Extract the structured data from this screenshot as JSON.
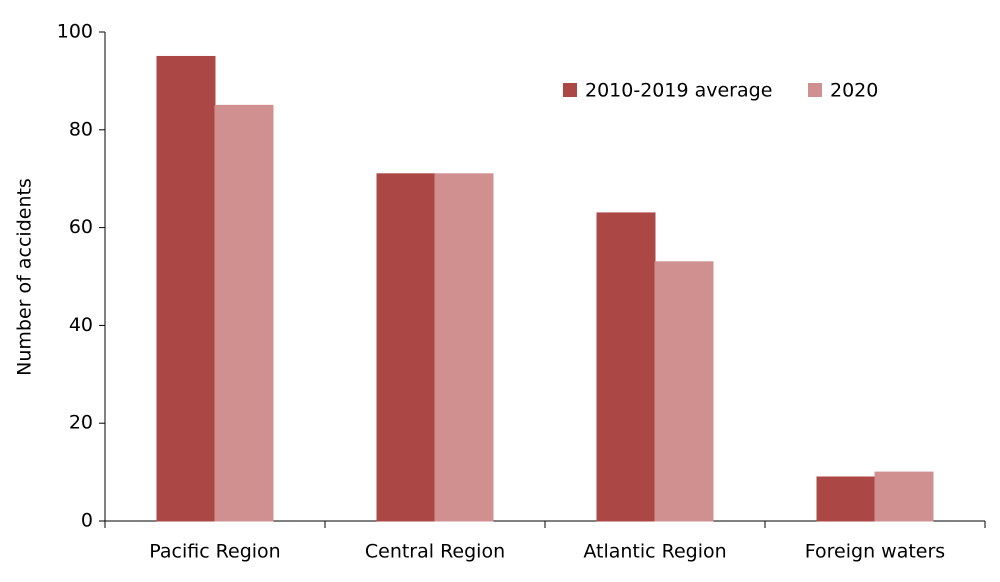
{
  "chart_data": {
    "type": "bar",
    "y_label": "Number of accidents",
    "categories": [
      "Pacific Region",
      "Central Region",
      "Atlantic Region",
      "Foreign waters"
    ],
    "series": [
      {
        "name": "2010-2019 average",
        "color": "#ab4745",
        "values": [
          95,
          71,
          63,
          9
        ]
      },
      {
        "name": "2020",
        "color": "#d09090",
        "values": [
          85,
          71,
          53,
          10
        ]
      }
    ],
    "ylim": [
      0,
      100
    ],
    "yticks": [
      0,
      20,
      40,
      60,
      80,
      100
    ],
    "grid": false,
    "legend": "top-right"
  }
}
